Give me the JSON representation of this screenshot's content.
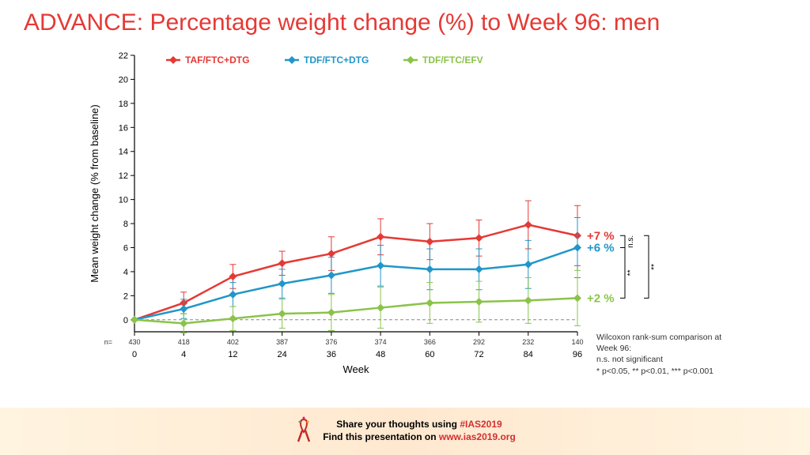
{
  "title": "ADVANCE: Percentage weight change (%) to Week 96: men",
  "chart": {
    "type": "line",
    "x_label": "Week",
    "y_label": "Mean weight change (% from baseline)",
    "x_ticks": [
      0,
      4,
      12,
      24,
      36,
      48,
      60,
      72,
      84,
      96
    ],
    "y_ticks": [
      0,
      2,
      4,
      6,
      8,
      10,
      12,
      14,
      16,
      18,
      20,
      22
    ],
    "ylim": [
      -1,
      22
    ],
    "n_row_label": "n=",
    "n_values": [
      430,
      418,
      402,
      387,
      376,
      374,
      366,
      292,
      232,
      140
    ],
    "series": [
      {
        "name": "TAF/FTC+DTG",
        "color": "#e53935",
        "marker": "diamond",
        "y": [
          0.0,
          1.4,
          3.6,
          4.7,
          5.5,
          6.9,
          6.5,
          6.8,
          7.9,
          7.0
        ],
        "err": [
          0.0,
          0.9,
          1.0,
          1.0,
          1.4,
          1.5,
          1.5,
          1.5,
          2.0,
          2.5
        ],
        "end_label": "+7 %"
      },
      {
        "name": "TDF/FTC+DTG",
        "color": "#2196c9",
        "marker": "diamond",
        "y": [
          0.0,
          0.9,
          2.1,
          3.0,
          3.7,
          4.5,
          4.2,
          4.2,
          4.6,
          6.0
        ],
        "err": [
          0.0,
          0.8,
          1.0,
          1.2,
          1.5,
          1.7,
          1.7,
          1.7,
          2.0,
          2.5
        ],
        "end_label": "+6 %"
      },
      {
        "name": "TDF/FTC/EFV",
        "color": "#8bc34a",
        "marker": "diamond",
        "y": [
          0.0,
          -0.3,
          0.1,
          0.5,
          0.6,
          1.0,
          1.4,
          1.5,
          1.6,
          1.8
        ],
        "err": [
          0.0,
          0.8,
          1.0,
          1.2,
          1.5,
          1.7,
          1.7,
          1.7,
          1.9,
          2.3
        ],
        "end_label": "+2 %"
      }
    ],
    "brackets": [
      {
        "from_series": 0,
        "to_series": 1,
        "label": "n.s."
      },
      {
        "from_series": 1,
        "to_series": 2,
        "label": "**"
      },
      {
        "from_series": 0,
        "to_series": 2,
        "label": "**",
        "outer": true
      }
    ],
    "stats_note": "Wilcoxon rank-sum comparison at Week 96:\nn.s. not significant\n* p<0.05, ** p<0.01, *** p<0.001",
    "line_width": 2.5,
    "marker_size": 5,
    "err_cap": 4,
    "grid_color": "#999",
    "background_color": "#ffffff",
    "axis_font_size": 12,
    "tick_font_size": 11
  },
  "footer": {
    "line1_a": "Share your thoughts using ",
    "line1_b": "#IAS2019",
    "line2_a": "Find this presentation on ",
    "line2_b": "www.ias2019.org"
  }
}
